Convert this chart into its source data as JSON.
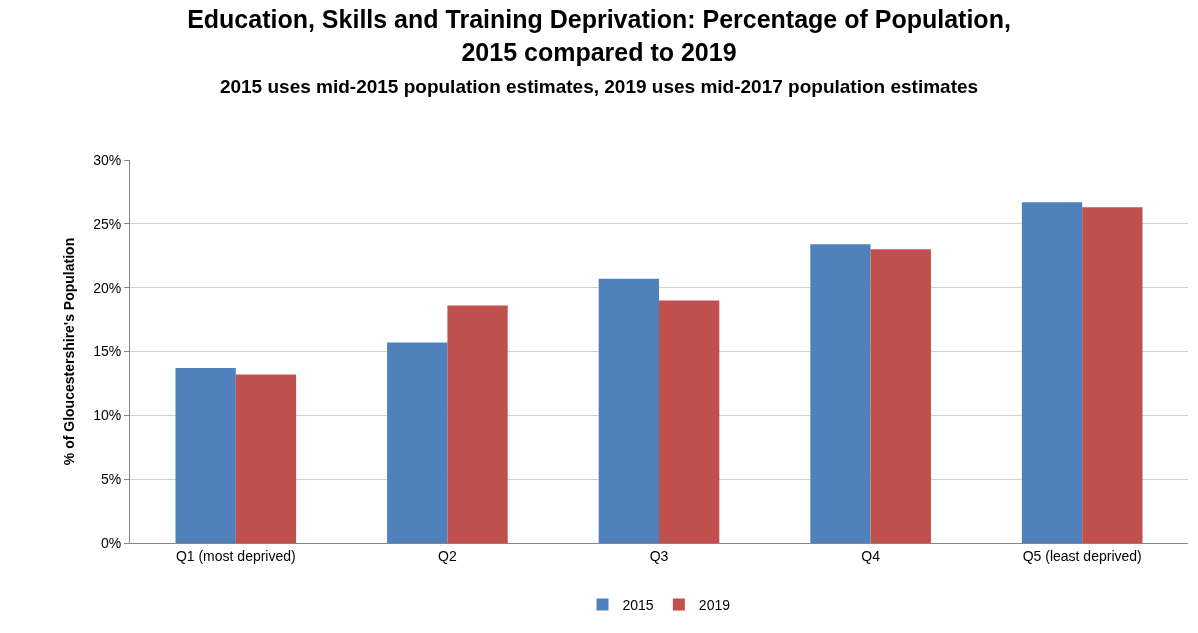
{
  "chart_data": {
    "type": "bar",
    "title": "Education, Skills and Training Deprivation: Percentage of Population, 2015 compared to 2019",
    "subtitle": "2015 uses mid-2015 population estimates, 2019 uses mid-2017 population estimates",
    "ylabel": "% of Gloucestershire's Population",
    "categories": [
      "Q1 (most deprived)",
      "Q2",
      "Q3",
      "Q4",
      "Q5 (least deprived)"
    ],
    "series": [
      {
        "name": "2015",
        "color": "#4f81bd",
        "values": [
          13.7,
          15.7,
          20.7,
          23.4,
          26.7
        ]
      },
      {
        "name": "2019",
        "color": "#c0504d",
        "values": [
          13.2,
          18.6,
          19.0,
          23.0,
          26.3
        ]
      }
    ],
    "ylim": [
      0,
      30
    ],
    "yticks": [
      {
        "value": 0,
        "label": "0%"
      },
      {
        "value": 5,
        "label": "5%"
      },
      {
        "value": 10,
        "label": "10%"
      },
      {
        "value": 15,
        "label": "15%"
      },
      {
        "value": 20,
        "label": "20%"
      },
      {
        "value": 25,
        "label": "25%"
      },
      {
        "value": 30,
        "label": "30%"
      }
    ],
    "grid": "y",
    "legend": "bottom"
  }
}
